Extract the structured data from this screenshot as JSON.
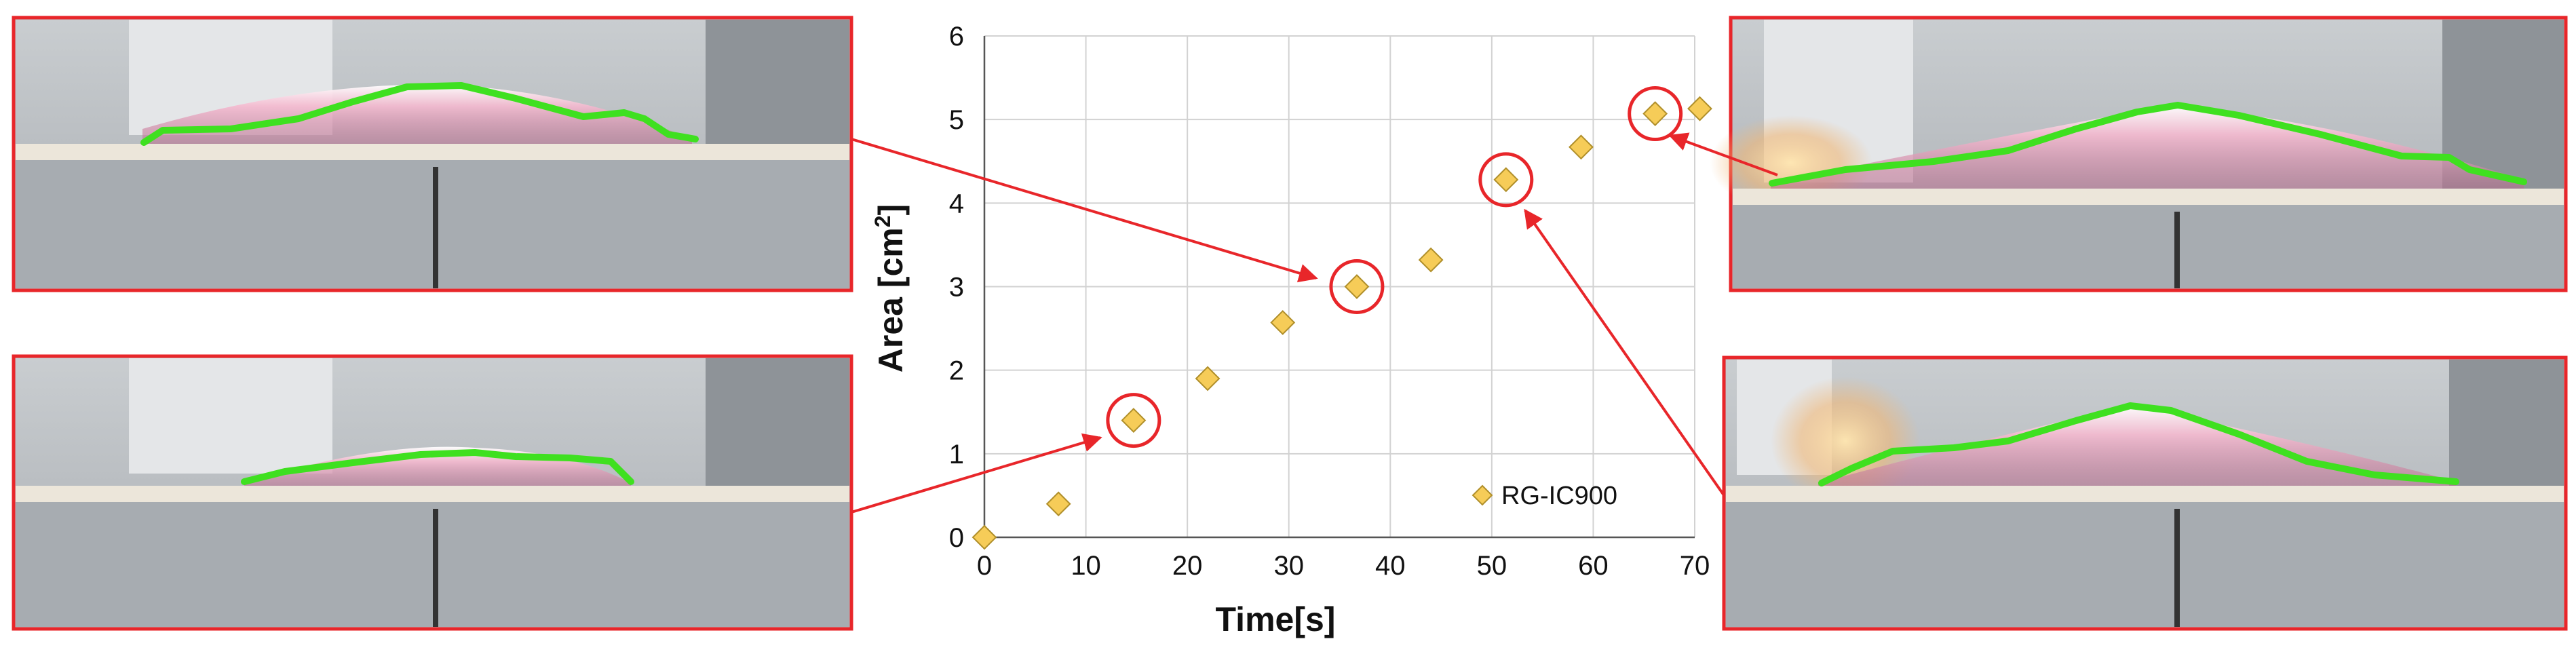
{
  "colors": {
    "marker": "#f6cc58",
    "highlight": "#e8262a",
    "flame_front": "#3fe020",
    "frame": "#e8262a"
  },
  "photos": [
    {
      "id": "top-left",
      "description_icon": "flame-spread-photo-icon"
    },
    {
      "id": "bottom-left",
      "description_icon": "flame-spread-photo-icon"
    },
    {
      "id": "top-right",
      "description_icon": "flame-spread-photo-icon"
    },
    {
      "id": "bottom-right",
      "description_icon": "flame-spread-photo-icon"
    }
  ],
  "chart_data": {
    "type": "scatter",
    "title": "",
    "xlabel": "Time[s]",
    "ylabel_text": "Area [cm",
    "ylabel_sup": "2",
    "ylabel_end": "]",
    "xlim": [
      0,
      70
    ],
    "ylim": [
      0,
      6
    ],
    "xticks": [
      0,
      10,
      20,
      30,
      40,
      50,
      60,
      70
    ],
    "yticks": [
      0,
      1,
      2,
      3,
      4,
      5,
      6
    ],
    "grid": true,
    "legend_position": "bottom-right",
    "series": [
      {
        "name": "RG-IC900",
        "marker": "diamond",
        "x": [
          0,
          7.3,
          14.7,
          22.0,
          29.4,
          36.7,
          44.0,
          51.4,
          58.8,
          66.1,
          70.5
        ],
        "y": [
          0.0,
          0.4,
          1.4,
          1.9,
          2.57,
          3.0,
          3.32,
          4.28,
          4.67,
          5.07,
          5.13
        ]
      }
    ],
    "highlighted_points": [
      {
        "x": 14.7,
        "y": 1.4,
        "photo": "bottom-left"
      },
      {
        "x": 36.7,
        "y": 3.0,
        "photo": "top-left"
      },
      {
        "x": 51.4,
        "y": 4.28,
        "photo": "bottom-right"
      },
      {
        "x": 66.1,
        "y": 5.07,
        "photo": "top-right"
      }
    ]
  }
}
